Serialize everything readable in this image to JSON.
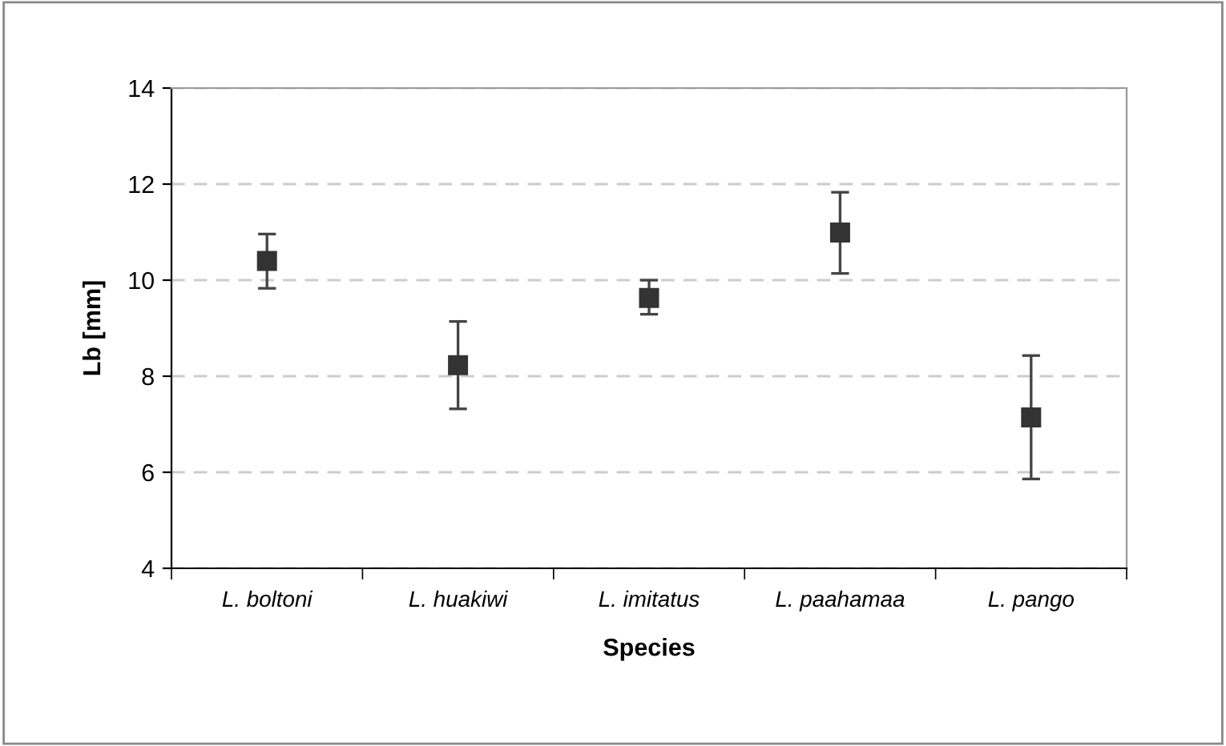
{
  "chart_data": {
    "type": "scatter",
    "xlabel": "Species",
    "ylabel": "Lb [mm]",
    "categories": [
      "L. boltoni",
      "L. huakiwi",
      "L. imitatus",
      "L. paahamaa",
      "L. pango"
    ],
    "values": [
      10.4,
      8.23,
      9.63,
      10.99,
      7.14
    ],
    "errors": [
      [
        9.83,
        10.96
      ],
      [
        7.32,
        9.14
      ],
      [
        9.29,
        10.0
      ],
      [
        10.14,
        11.83
      ],
      [
        5.86,
        8.43
      ]
    ],
    "color": "#333333",
    "marker": "square",
    "ylim": [
      4,
      14
    ],
    "yticks": [
      4,
      6,
      8,
      10,
      12,
      14
    ],
    "grid": "y"
  }
}
